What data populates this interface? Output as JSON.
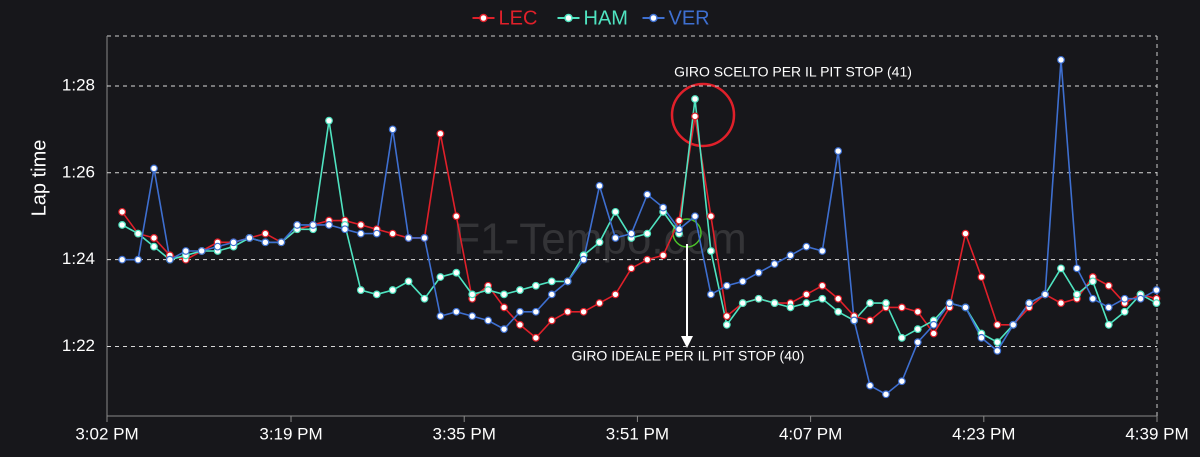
{
  "chart_data": {
    "type": "line",
    "y_label": "Lap time",
    "watermark": "F1-Tempo.com",
    "annotations": [
      "GIRO SCELTO PER IL PIT STOP (41)",
      "GIRO IDEALE PER IL PIT STOP (40)"
    ],
    "x": [
      903.4,
      904.87,
      906.34,
      907.81,
      909.28,
      910.75,
      912.22,
      913.69,
      915.16,
      916.63,
      918.1,
      919.57,
      921.04,
      922.51,
      923.98,
      925.45,
      926.92,
      928.39,
      929.86,
      931.33,
      932.8,
      934.27,
      935.74,
      937.21,
      938.68,
      940.15,
      941.62,
      943.09,
      944.56,
      946.03,
      947.5,
      948.97,
      950.44,
      951.91,
      953.38,
      954.85,
      956.32,
      957.79,
      959.26,
      960.73,
      962.2,
      963.67,
      965.14,
      966.61,
      968.08,
      969.55,
      971.02,
      972.49,
      973.96,
      975.43,
      976.9,
      978.37,
      979.84,
      981.31,
      982.78,
      984.25,
      985.72,
      987.19,
      988.66,
      990.13,
      991.6,
      993.07,
      994.54,
      996.01,
      997.48,
      998.95
    ],
    "series": [
      {
        "name": "LEC",
        "color": "#e0202a",
        "values": [
          85.1,
          84.6,
          84.5,
          84.1,
          84.0,
          84.2,
          84.4,
          84.4,
          84.5,
          84.6,
          84.4,
          84.7,
          84.8,
          84.9,
          84.9,
          84.8,
          84.7,
          84.6,
          84.5,
          84.5,
          86.9,
          85.0,
          83.1,
          83.4,
          82.9,
          82.5,
          82.2,
          82.6,
          82.8,
          82.8,
          83.0,
          83.2,
          83.8,
          84.0,
          84.1,
          84.9,
          87.3,
          85.0,
          82.7,
          83.0,
          83.1,
          83.0,
          83.0,
          83.2,
          83.4,
          83.1,
          82.7,
          82.6,
          82.9,
          82.9,
          82.8,
          82.3,
          82.9,
          84.6,
          83.6,
          82.5,
          82.5,
          82.9,
          83.2,
          83.0,
          83.1,
          83.6,
          83.4,
          83.0,
          83.2,
          83.1
        ]
      },
      {
        "name": "HAM",
        "color": "#4fe3c0",
        "values": [
          84.8,
          84.6,
          84.3,
          84.0,
          84.1,
          84.2,
          84.2,
          84.3,
          84.5,
          84.4,
          84.4,
          84.7,
          84.7,
          87.2,
          84.8,
          83.3,
          83.2,
          83.3,
          83.5,
          83.1,
          83.6,
          83.7,
          83.2,
          83.3,
          83.2,
          83.3,
          83.4,
          83.5,
          83.5,
          84.1,
          84.4,
          85.1,
          84.5,
          84.6,
          85.1,
          84.6,
          87.7,
          84.2,
          82.5,
          83.0,
          83.1,
          83.0,
          82.9,
          83.0,
          83.1,
          82.8,
          82.6,
          83.0,
          83.0,
          82.2,
          82.4,
          82.6,
          83.0,
          82.9,
          82.3,
          82.1,
          82.5,
          83.0,
          83.2,
          83.8,
          83.2,
          83.5,
          82.5,
          82.8,
          83.2,
          83.0
        ]
      },
      {
        "name": "VER",
        "color": "#3e6fd0",
        "values": [
          84.0,
          84.0,
          86.1,
          84.0,
          84.2,
          84.2,
          84.3,
          84.4,
          84.5,
          84.4,
          84.4,
          84.8,
          84.8,
          84.8,
          84.7,
          84.6,
          84.6,
          87.0,
          84.5,
          84.5,
          82.7,
          82.8,
          82.7,
          82.6,
          82.4,
          82.8,
          82.8,
          83.2,
          83.5,
          84.0,
          85.7,
          84.5,
          84.6,
          85.5,
          85.2,
          84.7,
          85.0,
          83.2,
          83.4,
          83.5,
          83.7,
          83.9,
          84.1,
          84.3,
          84.2,
          86.5,
          82.6,
          81.1,
          80.9,
          81.2,
          82.1,
          82.5,
          83.0,
          82.9,
          82.2,
          81.9,
          82.5,
          83.0,
          83.2,
          88.6,
          83.8,
          83.1,
          82.9,
          83.1,
          83.1,
          83.3
        ]
      }
    ],
    "xlim": [
      902,
      999
    ],
    "xticks": [
      {
        "value": 902,
        "label": "3:02 PM"
      },
      {
        "value": 919,
        "label": "3:19 PM"
      },
      {
        "value": 935,
        "label": "3:35 PM"
      },
      {
        "value": 951,
        "label": "3:51 PM"
      },
      {
        "value": 967,
        "label": "4:07 PM"
      },
      {
        "value": 983,
        "label": "4:23 PM"
      },
      {
        "value": 999,
        "label": "4:39 PM"
      }
    ],
    "ylim": [
      80.4,
      89.15
    ],
    "yticks": [
      {
        "value": 82,
        "label": "1:22"
      },
      {
        "value": 84,
        "label": "1:24"
      },
      {
        "value": 86,
        "label": "1:26"
      },
      {
        "value": 88,
        "label": "1:28"
      }
    ],
    "grid": true,
    "legend": "top"
  }
}
